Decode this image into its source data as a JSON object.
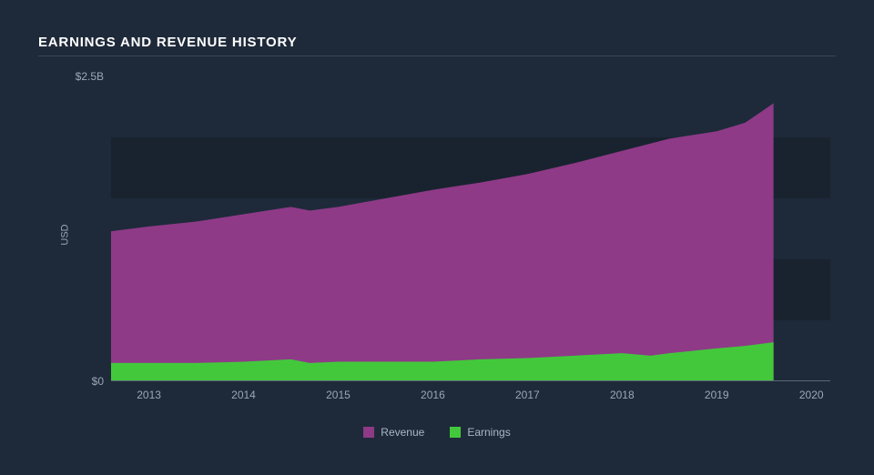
{
  "title": "EARNINGS AND REVENUE HISTORY",
  "chart": {
    "type": "area",
    "background_color": "#1e2a3a",
    "band_color": "#19232f",
    "axis_color": "#5a6876",
    "text_color": "#9aa7b5",
    "y_axis": {
      "label": "USD",
      "min": 0,
      "max": 2.5,
      "ticks": [
        {
          "value": 0,
          "label": "$0"
        },
        {
          "value": 2.5,
          "label": "$2.5B"
        }
      ],
      "bands": [
        {
          "from": 0.5,
          "to": 1.0
        },
        {
          "from": 1.5,
          "to": 2.0
        }
      ]
    },
    "x_axis": {
      "min": 2012.6,
      "max": 2020.2,
      "data_end": 2019.6,
      "ticks": [
        2013,
        2014,
        2015,
        2016,
        2017,
        2018,
        2019,
        2020
      ]
    },
    "series": [
      {
        "name": "Revenue",
        "color": "#8e3a87",
        "points": [
          {
            "x": 2012.6,
            "y": 1.23
          },
          {
            "x": 2013.0,
            "y": 1.27
          },
          {
            "x": 2013.5,
            "y": 1.31
          },
          {
            "x": 2014.0,
            "y": 1.37
          },
          {
            "x": 2014.5,
            "y": 1.43
          },
          {
            "x": 2014.7,
            "y": 1.4
          },
          {
            "x": 2015.0,
            "y": 1.43
          },
          {
            "x": 2015.5,
            "y": 1.5
          },
          {
            "x": 2016.0,
            "y": 1.57
          },
          {
            "x": 2016.5,
            "y": 1.63
          },
          {
            "x": 2017.0,
            "y": 1.7
          },
          {
            "x": 2017.5,
            "y": 1.79
          },
          {
            "x": 2018.0,
            "y": 1.89
          },
          {
            "x": 2018.5,
            "y": 1.99
          },
          {
            "x": 2019.0,
            "y": 2.05
          },
          {
            "x": 2019.3,
            "y": 2.12
          },
          {
            "x": 2019.6,
            "y": 2.28
          }
        ]
      },
      {
        "name": "Earnings",
        "color": "#43c83c",
        "points": [
          {
            "x": 2012.6,
            "y": 0.15
          },
          {
            "x": 2013.0,
            "y": 0.15
          },
          {
            "x": 2013.5,
            "y": 0.15
          },
          {
            "x": 2014.0,
            "y": 0.16
          },
          {
            "x": 2014.5,
            "y": 0.18
          },
          {
            "x": 2014.7,
            "y": 0.15
          },
          {
            "x": 2015.0,
            "y": 0.16
          },
          {
            "x": 2015.5,
            "y": 0.16
          },
          {
            "x": 2016.0,
            "y": 0.16
          },
          {
            "x": 2016.5,
            "y": 0.18
          },
          {
            "x": 2017.0,
            "y": 0.19
          },
          {
            "x": 2017.5,
            "y": 0.21
          },
          {
            "x": 2018.0,
            "y": 0.23
          },
          {
            "x": 2018.3,
            "y": 0.21
          },
          {
            "x": 2018.5,
            "y": 0.23
          },
          {
            "x": 2019.0,
            "y": 0.27
          },
          {
            "x": 2019.3,
            "y": 0.29
          },
          {
            "x": 2019.6,
            "y": 0.32
          }
        ]
      }
    ],
    "legend": [
      {
        "label": "Revenue",
        "color": "#8e3a87"
      },
      {
        "label": "Earnings",
        "color": "#43c83c"
      }
    ]
  }
}
